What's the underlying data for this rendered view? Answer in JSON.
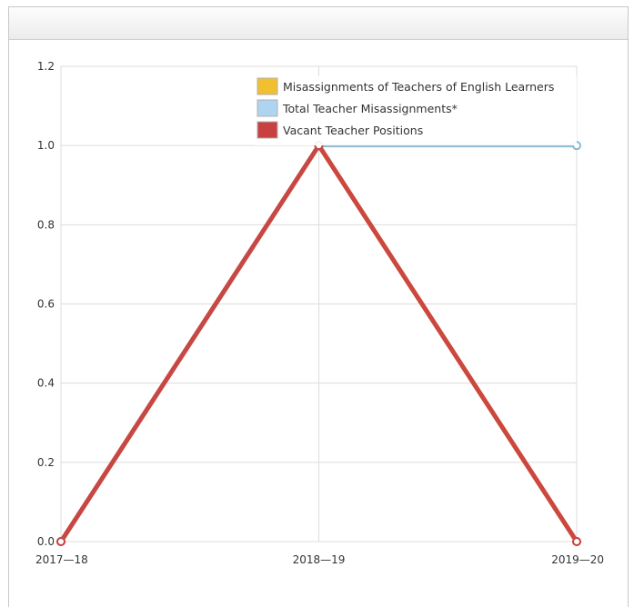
{
  "chart_data": {
    "type": "line",
    "title": "",
    "xlabel": "",
    "ylabel": "",
    "categories": [
      "2017—18",
      "2018—19",
      "2019—20"
    ],
    "ylim": [
      0,
      1.2
    ],
    "yticks": [
      "0.0",
      "0.2",
      "0.4",
      "0.6",
      "0.8",
      "1.0",
      "1.2"
    ],
    "grid": true,
    "legend_position": "top-right",
    "series": [
      {
        "name": "Misassignments of Teachers of English Learners",
        "color": "#f0c030",
        "values": [
          0,
          1,
          0
        ]
      },
      {
        "name": "Total Teacher Misassignments*",
        "color": "#aed4f0",
        "values": [
          0,
          1,
          1
        ]
      },
      {
        "name": "Vacant Teacher Positions",
        "color": "#c84040",
        "values": [
          0,
          1,
          0
        ]
      }
    ]
  }
}
